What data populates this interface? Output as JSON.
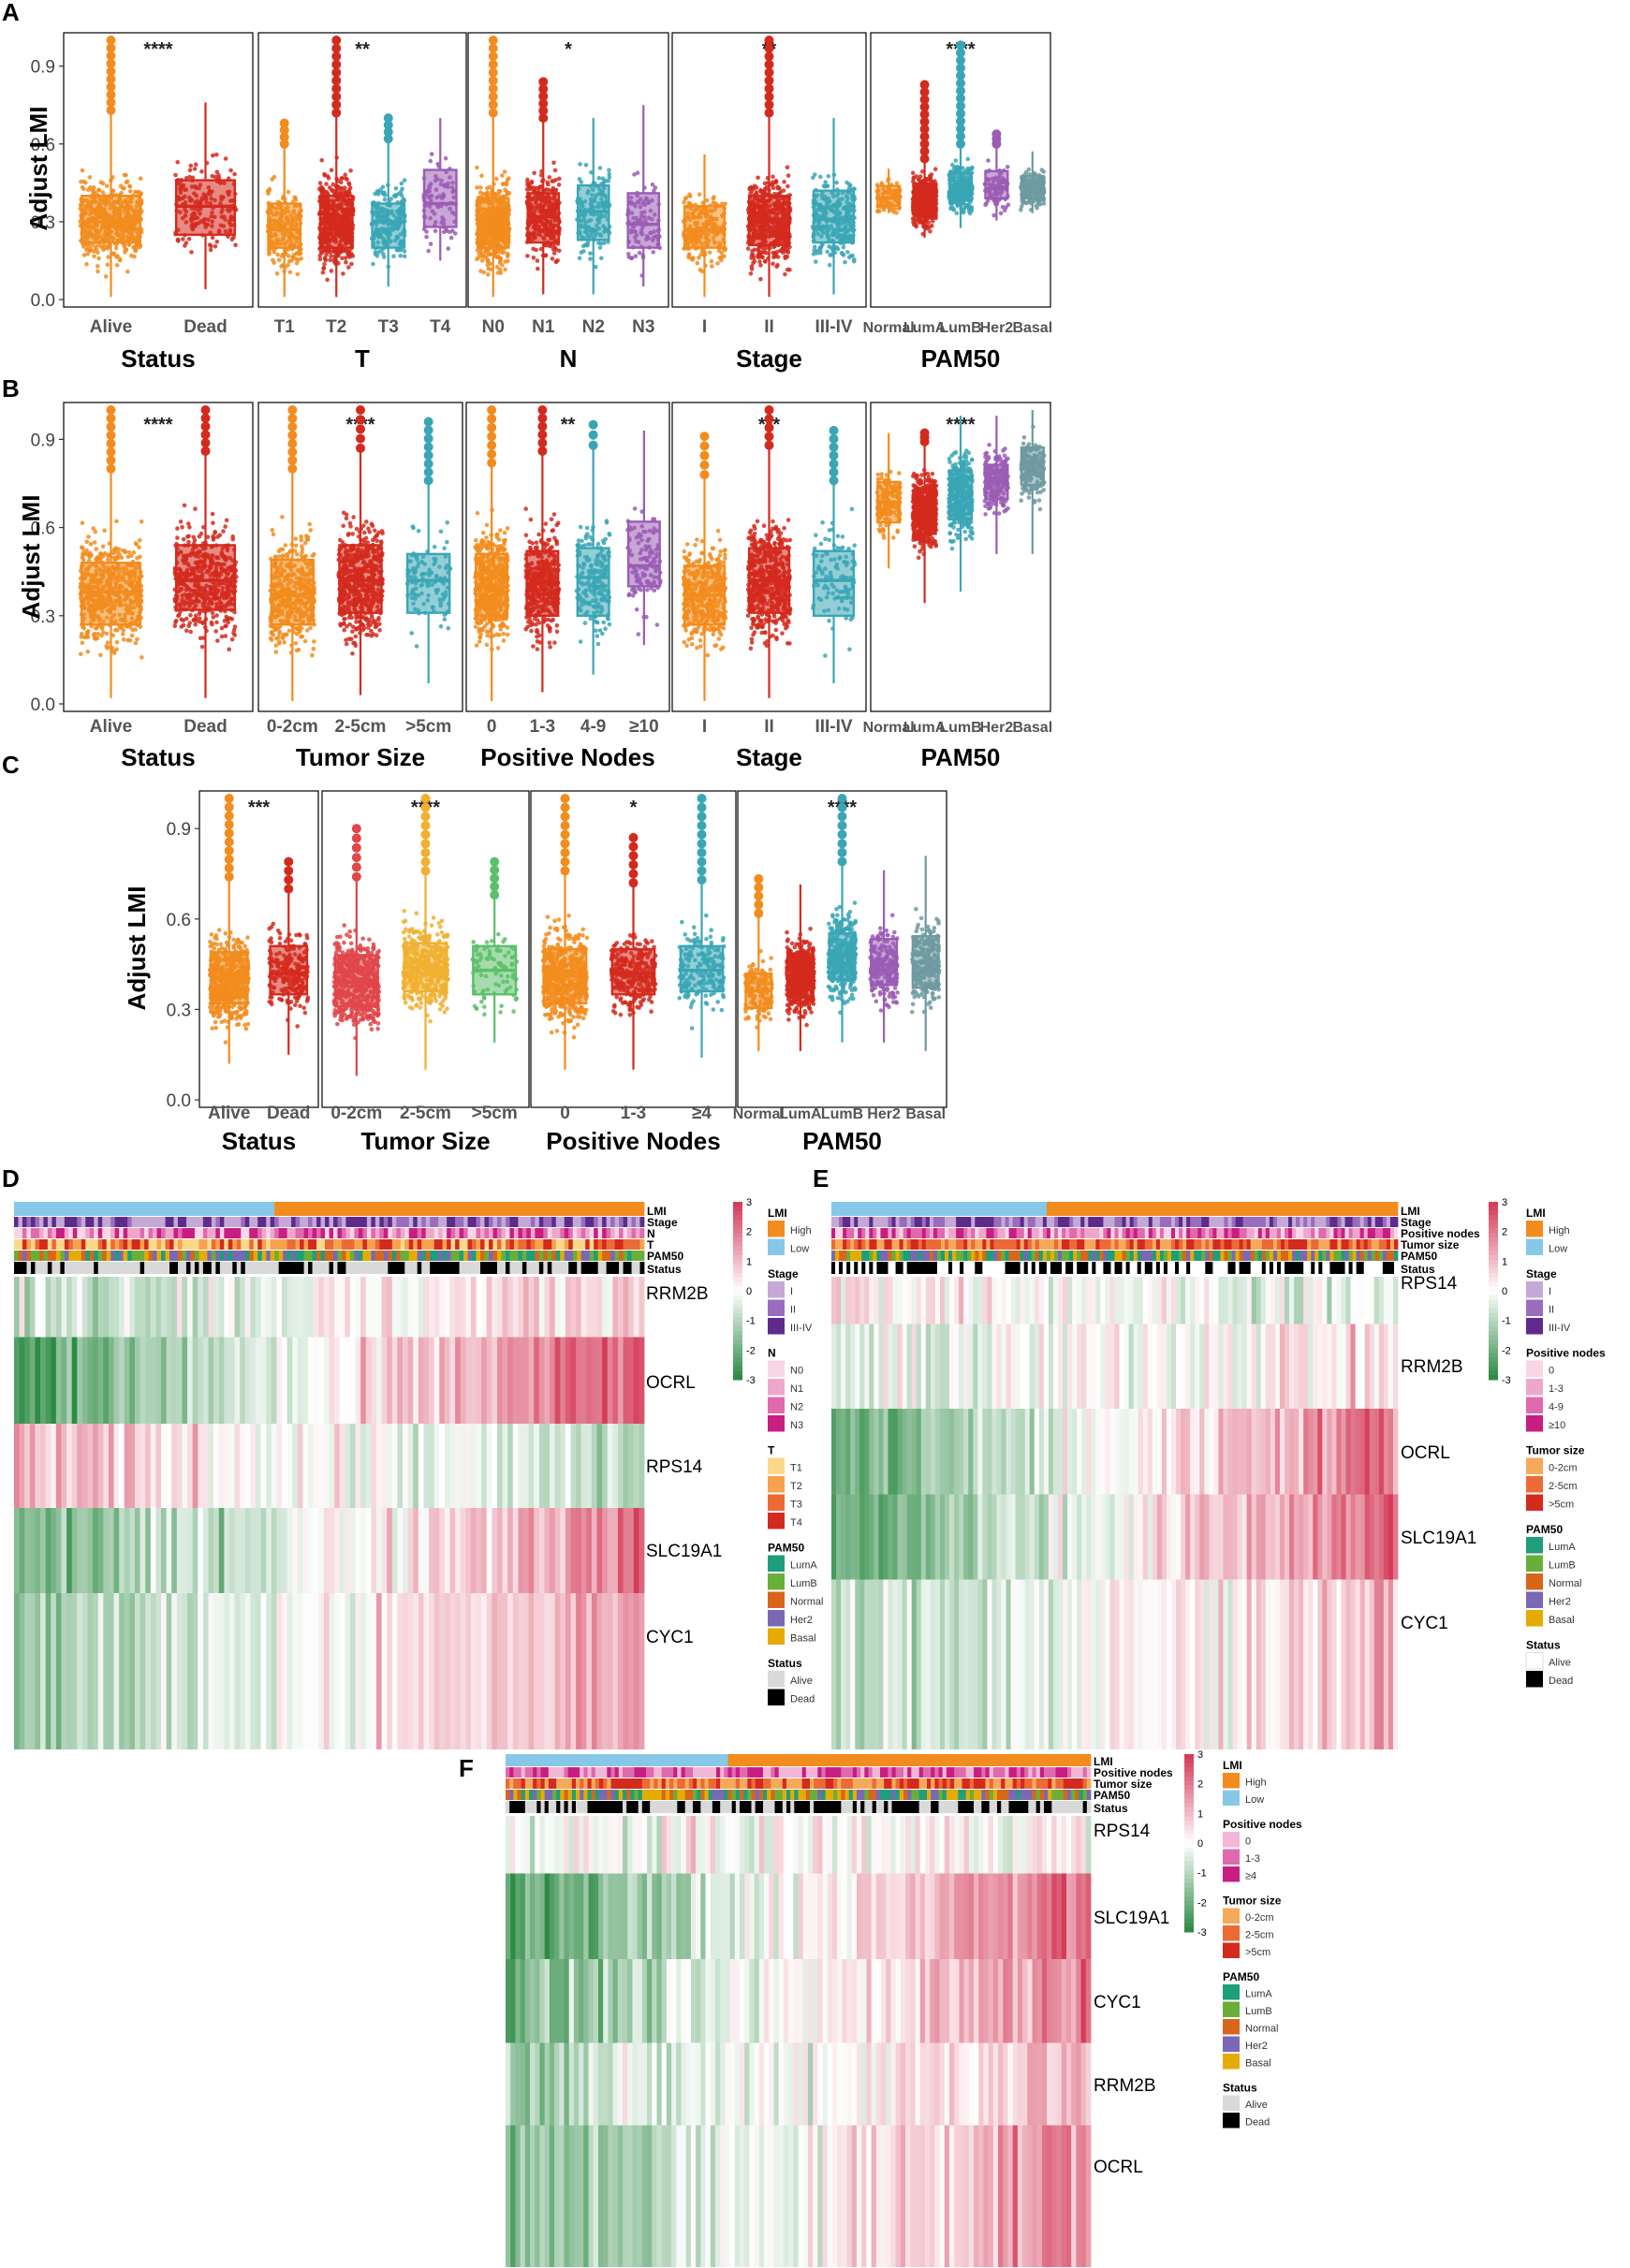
{
  "panel_letters": [
    "A",
    "B",
    "C",
    "D",
    "E",
    "F"
  ],
  "y_axis_label": "Adjust LMI",
  "colors": {
    "orange": "#F28C1E",
    "red": "#D42A1E",
    "teal": "#3AA6B5",
    "purple": "#9A5CB4",
    "slate": "#6E9AA0",
    "lightred": "#E0464A",
    "gold": "#F0B030",
    "green": "#5CBF6A",
    "heat_low": "#2E8B45",
    "heat_mid": "#FFFFFF",
    "heat_high": "#D43C5A"
  },
  "chart_data": [
    {
      "id": "A1",
      "type": "box",
      "title": "Status",
      "star": "****",
      "categories": [
        "Alive",
        "Dead"
      ],
      "colors": [
        "orange",
        "red"
      ],
      "q1": [
        0.22,
        0.25
      ],
      "median": [
        0.3,
        0.36
      ],
      "q3": [
        0.4,
        0.46
      ],
      "wlo": [
        0.01,
        0.04
      ],
      "whi": [
        0.73,
        0.76
      ],
      "max": [
        1.0,
        0.76
      ],
      "ylim": [
        0.0,
        1.0
      ],
      "yticks": [
        "0.0",
        "0.3",
        "0.6",
        "0.9"
      ],
      "density": [
        1.0,
        0.3
      ]
    },
    {
      "id": "A2",
      "type": "box",
      "title": "T",
      "star": "**",
      "categories": [
        "T1",
        "T2",
        "T3",
        "T4"
      ],
      "colors": [
        "orange",
        "red",
        "teal",
        "purple"
      ],
      "q1": [
        0.2,
        0.2,
        0.2,
        0.28
      ],
      "median": [
        0.27,
        0.3,
        0.3,
        0.37
      ],
      "q3": [
        0.37,
        0.4,
        0.37,
        0.5
      ],
      "wlo": [
        0.01,
        0.01,
        0.05,
        0.15
      ],
      "whi": [
        0.6,
        0.72,
        0.62,
        0.7
      ],
      "max": [
        0.68,
        1.0,
        0.7,
        0.7
      ],
      "ylim": [
        0.0,
        1.0
      ],
      "density": [
        0.35,
        1.0,
        0.35,
        0.1
      ]
    },
    {
      "id": "A3",
      "type": "box",
      "title": "N",
      "star": "*",
      "categories": [
        "N0",
        "N1",
        "N2",
        "N3"
      ],
      "colors": [
        "orange",
        "red",
        "teal",
        "purple"
      ],
      "q1": [
        0.2,
        0.22,
        0.23,
        0.2
      ],
      "median": [
        0.29,
        0.32,
        0.34,
        0.29
      ],
      "q3": [
        0.39,
        0.41,
        0.44,
        0.41
      ],
      "wlo": [
        0.01,
        0.02,
        0.02,
        0.05
      ],
      "whi": [
        0.72,
        0.7,
        0.7,
        0.75
      ],
      "max": [
        1.0,
        0.84,
        0.72,
        0.77
      ],
      "ylim": [
        0.0,
        1.0
      ],
      "density": [
        1.0,
        0.55,
        0.25,
        0.12
      ]
    },
    {
      "id": "A4",
      "type": "box",
      "title": "Stage",
      "star": "**",
      "categories": [
        "I",
        "II",
        "III-IV"
      ],
      "colors": [
        "orange",
        "red",
        "teal"
      ],
      "q1": [
        0.2,
        0.21,
        0.22
      ],
      "median": [
        0.27,
        0.3,
        0.31
      ],
      "q3": [
        0.36,
        0.4,
        0.42
      ],
      "wlo": [
        0.01,
        0.01,
        0.02
      ],
      "whi": [
        0.56,
        0.72,
        0.7
      ],
      "max": [
        0.56,
        1.0,
        0.7
      ],
      "ylim": [
        0.0,
        1.0
      ],
      "density": [
        0.4,
        1.0,
        0.5
      ]
    },
    {
      "id": "A5",
      "type": "box",
      "title": "PAM50",
      "star": "****",
      "categories": [
        "Normal",
        "LumA",
        "LumB",
        "Her2",
        "Basal"
      ],
      "colors": [
        "orange",
        "red",
        "teal",
        "purple",
        "slate"
      ],
      "q1": [
        0.33,
        0.31,
        0.35,
        0.36,
        0.36
      ],
      "median": [
        0.36,
        0.35,
        0.4,
        0.4,
        0.4
      ],
      "q3": [
        0.41,
        0.42,
        0.46,
        0.47,
        0.45
      ],
      "wlo": [
        0.3,
        0.2,
        0.24,
        0.27,
        0.3
      ],
      "whi": [
        0.48,
        0.52,
        0.58,
        0.58,
        0.55
      ],
      "max": [
        0.5,
        0.82,
        0.98,
        0.62,
        0.56
      ],
      "ylim": [
        -0.05,
        1.0
      ],
      "density": [
        0.1,
        1.0,
        0.5,
        0.1,
        0.3
      ]
    },
    {
      "id": "B1",
      "type": "box",
      "title": "Status",
      "star": "****",
      "categories": [
        "Alive",
        "Dead"
      ],
      "colors": [
        "orange",
        "red"
      ],
      "q1": [
        0.27,
        0.32
      ],
      "median": [
        0.38,
        0.42
      ],
      "q3": [
        0.48,
        0.54
      ],
      "wlo": [
        0.02,
        0.02
      ],
      "whi": [
        0.8,
        0.86
      ],
      "max": [
        1.0,
        1.0
      ],
      "ylim": [
        0.0,
        1.0
      ],
      "yticks": [
        "0.0",
        "0.3",
        "0.6",
        "0.9"
      ],
      "density": [
        1.0,
        0.9
      ]
    },
    {
      "id": "B2",
      "type": "box",
      "title": "Tumor Size",
      "star": "****",
      "categories": [
        "0-2cm",
        "2-5cm",
        ">5cm"
      ],
      "colors": [
        "orange",
        "red",
        "teal"
      ],
      "q1": [
        0.27,
        0.31,
        0.31
      ],
      "median": [
        0.37,
        0.42,
        0.42
      ],
      "q3": [
        0.49,
        0.54,
        0.51
      ],
      "wlo": [
        0.01,
        0.03,
        0.07
      ],
      "whi": [
        0.8,
        0.87,
        0.76
      ],
      "max": [
        1.0,
        1.0,
        0.96
      ],
      "ylim": [
        0.0,
        1.0
      ],
      "density": [
        0.8,
        1.0,
        0.15
      ]
    },
    {
      "id": "B3",
      "type": "box",
      "title": "Positive Nodes",
      "star": "**",
      "categories": [
        "0",
        "1-3",
        "4-9",
        "≥10"
      ],
      "colors": [
        "orange",
        "red",
        "teal",
        "purple"
      ],
      "q1": [
        0.3,
        0.3,
        0.3,
        0.4
      ],
      "median": [
        0.4,
        0.41,
        0.43,
        0.47
      ],
      "q3": [
        0.51,
        0.52,
        0.53,
        0.62
      ],
      "wlo": [
        0.01,
        0.04,
        0.1,
        0.2
      ],
      "whi": [
        0.82,
        0.86,
        0.88,
        0.93
      ],
      "max": [
        1.0,
        1.0,
        0.95,
        0.93
      ],
      "ylim": [
        0.0,
        1.0
      ],
      "density": [
        1.0,
        0.7,
        0.3,
        0.15
      ]
    },
    {
      "id": "B4",
      "type": "box",
      "title": "Stage",
      "star": "***",
      "categories": [
        "I",
        "II",
        "III-IV"
      ],
      "colors": [
        "orange",
        "red",
        "teal"
      ],
      "q1": [
        0.27,
        0.31,
        0.3
      ],
      "median": [
        0.37,
        0.42,
        0.42
      ],
      "q3": [
        0.47,
        0.53,
        0.52
      ],
      "wlo": [
        0.01,
        0.02,
        0.07
      ],
      "whi": [
        0.78,
        0.88,
        0.76
      ],
      "max": [
        0.91,
        1.0,
        0.93
      ],
      "ylim": [
        0.0,
        1.0
      ],
      "density": [
        0.7,
        1.0,
        0.15
      ]
    },
    {
      "id": "B5",
      "type": "box",
      "title": "PAM50",
      "star": "****",
      "categories": [
        "Normal",
        "LumA",
        "LumB",
        "Her2",
        "Basal"
      ],
      "colors": [
        "orange",
        "red",
        "teal",
        "purple",
        "slate"
      ],
      "q1": [
        0.61,
        0.57,
        0.62,
        0.69,
        0.74
      ],
      "median": [
        0.68,
        0.65,
        0.7,
        0.75,
        0.8
      ],
      "q3": [
        0.75,
        0.72,
        0.79,
        0.81,
        0.87
      ],
      "wlo": [
        0.45,
        0.33,
        0.37,
        0.5,
        0.5
      ],
      "whi": [
        0.92,
        0.89,
        0.98,
        0.98,
        1.0
      ],
      "max": [
        0.92,
        0.92,
        0.98,
        0.98,
        1.0
      ],
      "ylim": [
        -0.02,
        1.0
      ],
      "density": [
        0.2,
        1.0,
        0.6,
        0.3,
        0.3
      ]
    },
    {
      "id": "C1",
      "type": "box",
      "title": "Status",
      "star": "***",
      "categories": [
        "Alive",
        "Dead"
      ],
      "colors": [
        "orange",
        "red"
      ],
      "q1": [
        0.32,
        0.35
      ],
      "median": [
        0.4,
        0.42
      ],
      "q3": [
        0.49,
        0.51
      ],
      "wlo": [
        0.12,
        0.15
      ],
      "whi": [
        0.74,
        0.7
      ],
      "max": [
        1.0,
        0.79
      ],
      "ylim": [
        0.0,
        1.0
      ],
      "yticks": [
        "0.0",
        "0.3",
        "0.6",
        "0.9"
      ],
      "density": [
        1.0,
        0.35
      ]
    },
    {
      "id": "C2",
      "type": "box",
      "title": "Tumor Size",
      "star": "****",
      "categories": [
        "0-2cm",
        "2-5cm",
        ">5cm"
      ],
      "colors": [
        "lightred",
        "gold",
        "green"
      ],
      "q1": [
        0.31,
        0.36,
        0.35
      ],
      "median": [
        0.39,
        0.44,
        0.43
      ],
      "q3": [
        0.48,
        0.52,
        0.51
      ],
      "wlo": [
        0.08,
        0.1,
        0.19
      ],
      "whi": [
        0.74,
        0.76,
        0.68
      ],
      "max": [
        0.9,
        1.0,
        0.79
      ],
      "ylim": [
        0.0,
        1.0
      ],
      "density": [
        1.0,
        0.7,
        0.1
      ]
    },
    {
      "id": "C3",
      "type": "box",
      "title": "Positive Nodes",
      "star": "*",
      "categories": [
        "0",
        "1-3",
        "≥4"
      ],
      "colors": [
        "orange",
        "red",
        "teal"
      ],
      "q1": [
        0.32,
        0.35,
        0.36
      ],
      "median": [
        0.41,
        0.42,
        0.43
      ],
      "q3": [
        0.5,
        0.5,
        0.51
      ],
      "wlo": [
        0.1,
        0.1,
        0.14
      ],
      "whi": [
        0.76,
        0.72,
        0.73
      ],
      "max": [
        1.0,
        0.87,
        1.0
      ],
      "ylim": [
        0.0,
        1.0
      ],
      "density": [
        1.0,
        0.5,
        0.3
      ]
    },
    {
      "id": "C4",
      "type": "box",
      "title": "PAM50",
      "star": "****",
      "categories": [
        "Normal",
        "LumA",
        "LumB",
        "Her2",
        "Basal"
      ],
      "colors": [
        "orange",
        "red",
        "teal",
        "purple",
        "slate"
      ],
      "q1": [
        0.27,
        0.31,
        0.37,
        0.35,
        0.34
      ],
      "median": [
        0.33,
        0.38,
        0.45,
        0.42,
        0.43
      ],
      "q3": [
        0.39,
        0.46,
        0.53,
        0.51,
        0.52
      ],
      "wlo": [
        0.12,
        0.12,
        0.15,
        0.15,
        0.12
      ],
      "whi": [
        0.6,
        0.7,
        0.78,
        0.75,
        0.8
      ],
      "max": [
        0.72,
        0.71,
        1.0,
        0.77,
        0.8
      ],
      "ylim": [
        -0.05,
        1.0
      ],
      "density": [
        0.2,
        1.0,
        0.7,
        0.35,
        0.4
      ]
    },
    {
      "id": "D",
      "type": "heatmap",
      "tracks": [
        "LMI",
        "Stage",
        "N",
        "T",
        "PAM50",
        "Status"
      ],
      "genes": [
        "RRM2B",
        "OCRL",
        "RPS14",
        "SLC19A1",
        "CYC1"
      ],
      "trends": [
        0.35,
        1.0,
        -0.4,
        0.8,
        0.55
      ],
      "scale": [
        "3",
        "2",
        "1",
        "0",
        "-1",
        "-2",
        "-3"
      ]
    },
    {
      "id": "E",
      "type": "heatmap",
      "tracks": [
        "LMI",
        "Stage",
        "Positive nodes",
        "Tumor size",
        "PAM50",
        "Status"
      ],
      "genes": [
        "RPS14",
        "RRM2B",
        "OCRL",
        "SLC19A1",
        "CYC1"
      ],
      "trends": [
        -0.2,
        0.2,
        0.9,
        0.9,
        0.4
      ],
      "scale": [
        "3",
        "2",
        "1",
        "0",
        "-1",
        "-2",
        "-3"
      ]
    },
    {
      "id": "F",
      "type": "heatmap",
      "tracks": [
        "LMI",
        "Positive nodes",
        "Tumor size",
        "PAM50",
        "Status"
      ],
      "genes": [
        "RPS14",
        "SLC19A1",
        "CYC1",
        "RRM2B",
        "OCRL"
      ],
      "trends": [
        0.1,
        1.0,
        0.8,
        0.45,
        0.75
      ],
      "scale": [
        "3",
        "2",
        "1",
        "0",
        "-1",
        "-2",
        "-3"
      ]
    }
  ],
  "legends": {
    "D": [
      {
        "title": "LMI",
        "items": [
          [
            "High",
            "#F28C1E"
          ],
          [
            "Low",
            "#87C8E8"
          ]
        ]
      },
      {
        "title": "Stage",
        "items": [
          [
            "I",
            "#C6A8D8"
          ],
          [
            "II",
            "#9A6CBE"
          ],
          [
            "III-IV",
            "#5E2A8C"
          ]
        ]
      },
      {
        "title": "N",
        "items": [
          [
            "N0",
            "#F8D6E6"
          ],
          [
            "N1",
            "#EFA6CC"
          ],
          [
            "N2",
            "#E06AAE"
          ],
          [
            "N3",
            "#C81E82"
          ]
        ]
      },
      {
        "title": "T",
        "items": [
          [
            "T1",
            "#FBD88A"
          ],
          [
            "T2",
            "#F6A24E"
          ],
          [
            "T3",
            "#EC6A36"
          ],
          [
            "T4",
            "#D42A1E"
          ]
        ]
      },
      {
        "title": "PAM50",
        "items": [
          [
            "LumA",
            "#1E9E7A"
          ],
          [
            "LumB",
            "#6AAE3A"
          ],
          [
            "Normal",
            "#D8661A"
          ],
          [
            "Her2",
            "#7A68B4"
          ],
          [
            "Basal",
            "#E6AB02"
          ]
        ]
      },
      {
        "title": "Status",
        "items": [
          [
            "Alive",
            "#D9D9D9"
          ],
          [
            "Dead",
            "#000000"
          ]
        ]
      }
    ],
    "E": [
      {
        "title": "LMI",
        "items": [
          [
            "High",
            "#F28C1E"
          ],
          [
            "Low",
            "#87C8E8"
          ]
        ]
      },
      {
        "title": "Stage",
        "items": [
          [
            "I",
            "#C6A8D8"
          ],
          [
            "II",
            "#9A6CBE"
          ],
          [
            "III-IV",
            "#5E2A8C"
          ]
        ]
      },
      {
        "title": "Positive nodes",
        "items": [
          [
            "0",
            "#F8D6E6"
          ],
          [
            "1-3",
            "#EFA6CC"
          ],
          [
            "4-9",
            "#E06AAE"
          ],
          [
            "≥10",
            "#C81E82"
          ]
        ]
      },
      {
        "title": "Tumor size",
        "items": [
          [
            "0-2cm",
            "#F6A95A"
          ],
          [
            "2-5cm",
            "#EC6A36"
          ],
          [
            ">5cm",
            "#D42A1E"
          ]
        ]
      },
      {
        "title": "PAM50",
        "items": [
          [
            "LumA",
            "#1E9E7A"
          ],
          [
            "LumB",
            "#6AAE3A"
          ],
          [
            "Normal",
            "#D8661A"
          ],
          [
            "Her2",
            "#7A68B4"
          ],
          [
            "Basal",
            "#E6AB02"
          ]
        ]
      },
      {
        "title": "Status",
        "items": [
          [
            "Alive",
            "#FFFFFF"
          ],
          [
            "Dead",
            "#000000"
          ]
        ]
      }
    ],
    "F": [
      {
        "title": "LMI",
        "items": [
          [
            "High",
            "#F28C1E"
          ],
          [
            "Low",
            "#87C8E8"
          ]
        ]
      },
      {
        "title": "Positive nodes",
        "items": [
          [
            "0",
            "#F2B6D6"
          ],
          [
            "1-3",
            "#E06AAE"
          ],
          [
            "≥4",
            "#C81E82"
          ]
        ]
      },
      {
        "title": "Tumor size",
        "items": [
          [
            "0-2cm",
            "#F6A95A"
          ],
          [
            "2-5cm",
            "#EC6A36"
          ],
          [
            ">5cm",
            "#D42A1E"
          ]
        ]
      },
      {
        "title": "PAM50",
        "items": [
          [
            "LumA",
            "#1E9E7A"
          ],
          [
            "LumB",
            "#6AAE3A"
          ],
          [
            "Normal",
            "#D8661A"
          ],
          [
            "Her2",
            "#7A68B4"
          ],
          [
            "Basal",
            "#E6AB02"
          ]
        ]
      },
      {
        "title": "Status",
        "items": [
          [
            "Alive",
            "#D9D9D9"
          ],
          [
            "Dead",
            "#000000"
          ]
        ]
      }
    ]
  }
}
